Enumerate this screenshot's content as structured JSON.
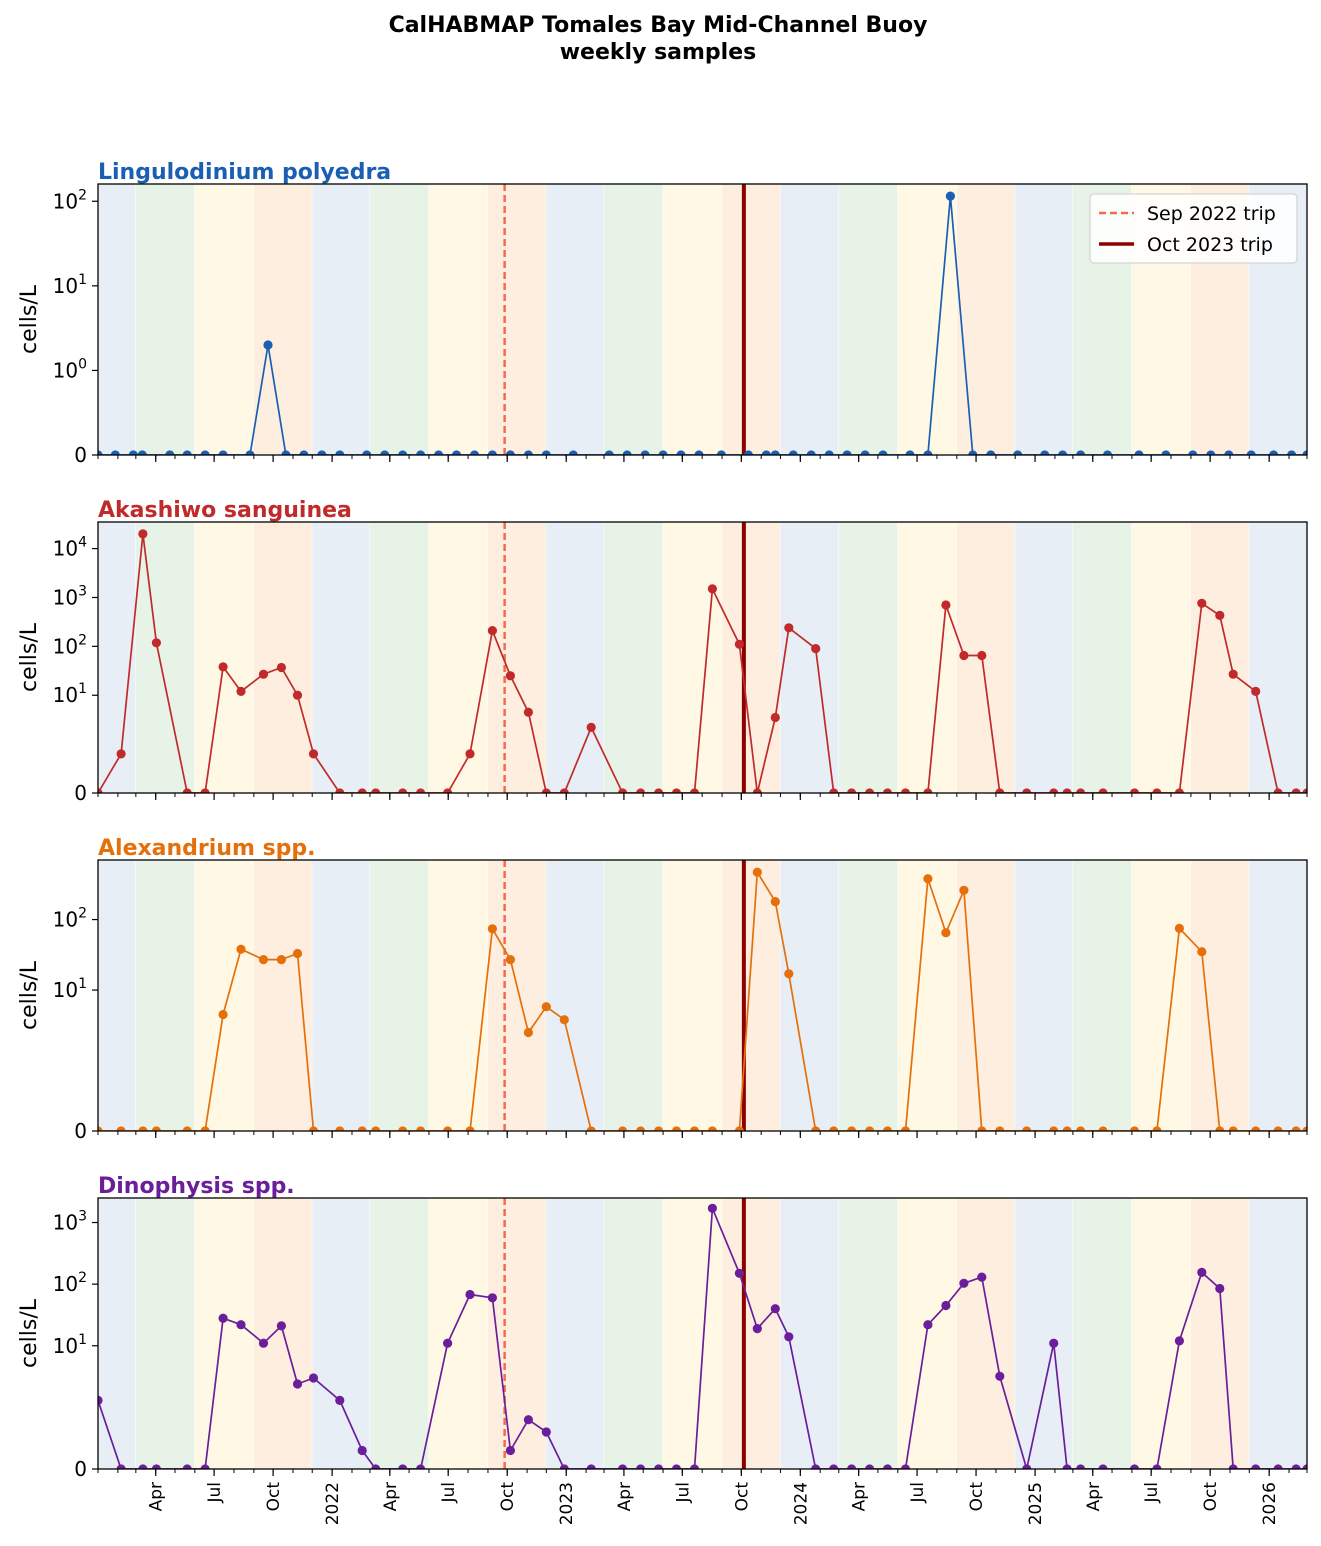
{
  "suptitle": [
    "CalHABMAP Tomales Bay Mid-Channel Buoy",
    "weekly samples"
  ],
  "colors": {
    "season_winter": "#e8eef6",
    "season_spring": "#e8f3e7",
    "season_summer": "#fff8e5",
    "season_fall": "#fdeedf",
    "trip_sep_2022": "#f26b4f",
    "trip_oct_2023": "#8b0000"
  },
  "chart_data": {
    "type": "line",
    "scale": "symlog",
    "ylabel": "cells/L",
    "x_tick_labels": [
      "Apr",
      "Jul",
      "Oct",
      "2022",
      "Apr",
      "Jul",
      "Oct",
      "2023",
      "Apr",
      "Jul",
      "Oct",
      "2024",
      "Apr",
      "Jul",
      "Oct",
      "2025",
      "Apr",
      "Jul",
      "Oct",
      "2026"
    ],
    "x_range": [
      "2021-01-01",
      "2026-03-01"
    ],
    "legend": {
      "placement": "top-right",
      "panel": 0,
      "entries": [
        {
          "label": "Sep 2022 trip",
          "style": "dashed",
          "color": "#f26b4f"
        },
        {
          "label": "Oct 2023 trip",
          "style": "solid",
          "color": "#8b0000"
        }
      ]
    },
    "trips": [
      {
        "label": "Sep 2022 trip",
        "date": "2022-09-27"
      },
      {
        "label": "Oct 2023 trip",
        "date": "2023-10-05"
      }
    ],
    "seasons": [
      {
        "start": "2020-12-01",
        "end": "2021-03-01",
        "season": "winter"
      },
      {
        "start": "2021-03-01",
        "end": "2021-06-01",
        "season": "spring"
      },
      {
        "start": "2021-06-01",
        "end": "2021-09-01",
        "season": "summer"
      },
      {
        "start": "2021-09-01",
        "end": "2021-12-01",
        "season": "fall"
      },
      {
        "start": "2021-12-01",
        "end": "2022-03-01",
        "season": "winter"
      },
      {
        "start": "2022-03-01",
        "end": "2022-06-01",
        "season": "spring"
      },
      {
        "start": "2022-06-01",
        "end": "2022-09-01",
        "season": "summer"
      },
      {
        "start": "2022-09-01",
        "end": "2022-12-01",
        "season": "fall"
      },
      {
        "start": "2022-12-01",
        "end": "2023-03-01",
        "season": "winter"
      },
      {
        "start": "2023-03-01",
        "end": "2023-06-01",
        "season": "spring"
      },
      {
        "start": "2023-06-01",
        "end": "2023-09-01",
        "season": "summer"
      },
      {
        "start": "2023-09-01",
        "end": "2023-12-01",
        "season": "fall"
      },
      {
        "start": "2023-12-01",
        "end": "2024-03-01",
        "season": "winter"
      },
      {
        "start": "2024-03-01",
        "end": "2024-06-01",
        "season": "spring"
      },
      {
        "start": "2024-06-01",
        "end": "2024-09-01",
        "season": "summer"
      },
      {
        "start": "2024-09-01",
        "end": "2024-12-01",
        "season": "fall"
      },
      {
        "start": "2024-12-01",
        "end": "2025-03-01",
        "season": "winter"
      },
      {
        "start": "2025-03-01",
        "end": "2025-06-01",
        "season": "spring"
      },
      {
        "start": "2025-06-01",
        "end": "2025-09-01",
        "season": "summer"
      },
      {
        "start": "2025-09-01",
        "end": "2025-12-01",
        "season": "fall"
      },
      {
        "start": "2025-12-01",
        "end": "2026-03-01",
        "season": "winter"
      }
    ],
    "panels": [
      {
        "title": "Lingulodinium polyedra",
        "color": "#1a5fb4",
        "ymax": 160,
        "yticks": [
          {
            "value": 0,
            "base": "0",
            "exp": ""
          },
          {
            "value": 1,
            "base": "10",
            "exp": "0"
          },
          {
            "value": 10,
            "base": "10",
            "exp": "1"
          },
          {
            "value": 100,
            "base": "10",
            "exp": "2"
          }
        ],
        "x": [
          "2021-01-01",
          "2021-01-28",
          "2021-02-25",
          "2021-03-11",
          "2021-04-23",
          "2021-05-20",
          "2021-06-17",
          "2021-07-15",
          "2021-08-26",
          "2021-09-23",
          "2021-10-21",
          "2021-11-18",
          "2021-12-16",
          "2022-01-13",
          "2022-02-24",
          "2022-03-24",
          "2022-04-21",
          "2022-05-19",
          "2022-06-16",
          "2022-07-14",
          "2022-08-11",
          "2022-09-08",
          "2022-10-06",
          "2022-11-03",
          "2022-12-01",
          "2023-01-12",
          "2023-03-09",
          "2023-04-06",
          "2023-05-04",
          "2023-06-01",
          "2023-06-29",
          "2023-07-27",
          "2023-08-31",
          "2023-10-12",
          "2023-11-09",
          "2023-11-23",
          "2023-12-21",
          "2024-01-18",
          "2024-02-15",
          "2024-03-14",
          "2024-04-11",
          "2024-05-09",
          "2024-06-20",
          "2024-07-18",
          "2024-08-22",
          "2024-09-26",
          "2024-10-24",
          "2024-12-05",
          "2025-01-16",
          "2025-02-13",
          "2025-03-13",
          "2025-04-24",
          "2025-06-12",
          "2025-07-24",
          "2025-09-04",
          "2025-10-02",
          "2025-10-30",
          "2025-12-04",
          "2026-01-08",
          "2026-02-05",
          "2026-03-01"
        ],
        "y": [
          0,
          0,
          0,
          0,
          0,
          0,
          0,
          0,
          0,
          2,
          0,
          0,
          0,
          0,
          0,
          0,
          0,
          0,
          0,
          0,
          0,
          0,
          0,
          0,
          0,
          0,
          0,
          0,
          0,
          0,
          0,
          0,
          0,
          0,
          0,
          0,
          0,
          0,
          0,
          0,
          0,
          0,
          0,
          0,
          115,
          0,
          0,
          0,
          0,
          0,
          0,
          0,
          0,
          0,
          0,
          0,
          0,
          0,
          0,
          0,
          0
        ]
      },
      {
        "title": "Akashiwo sanguinea",
        "color": "#c12a2a",
        "ymax": 35000,
        "yticks": [
          {
            "value": 0,
            "base": "0",
            "exp": ""
          },
          {
            "value": 10,
            "base": "10",
            "exp": "1"
          },
          {
            "value": 100,
            "base": "10",
            "exp": "2"
          },
          {
            "value": 1000,
            "base": "10",
            "exp": "3"
          },
          {
            "value": 10000,
            "base": "10",
            "exp": "4"
          }
        ],
        "x": [
          "2021-01-01",
          "2021-02-06",
          "2021-03-12",
          "2021-04-02",
          "2021-05-20",
          "2021-06-17",
          "2021-07-15",
          "2021-08-12",
          "2021-09-16",
          "2021-10-14",
          "2021-11-08",
          "2021-12-03",
          "2022-01-13",
          "2022-02-17",
          "2022-03-10",
          "2022-04-21",
          "2022-05-19",
          "2022-06-30",
          "2022-08-04",
          "2022-09-08",
          "2022-10-06",
          "2022-11-03",
          "2022-12-01",
          "2022-12-29",
          "2023-02-09",
          "2023-03-30",
          "2023-04-27",
          "2023-05-25",
          "2023-06-22",
          "2023-07-20",
          "2023-08-17",
          "2023-09-28",
          "2023-10-26",
          "2023-11-23",
          "2023-12-14",
          "2024-01-25",
          "2024-02-22",
          "2024-03-21",
          "2024-04-18",
          "2024-05-16",
          "2024-06-13",
          "2024-07-18",
          "2024-08-15",
          "2024-09-12",
          "2024-10-10",
          "2024-11-07",
          "2024-12-19",
          "2025-01-30",
          "2025-02-20",
          "2025-03-13",
          "2025-04-17",
          "2025-06-05",
          "2025-07-10",
          "2025-08-14",
          "2025-09-18",
          "2025-10-16",
          "2025-11-06",
          "2025-12-11",
          "2026-01-15",
          "2026-02-12",
          "2026-03-01"
        ],
        "y": [
          0,
          0.8,
          20000,
          118,
          0,
          0,
          38,
          12,
          27,
          37,
          10,
          0.8,
          0,
          0,
          0,
          0,
          0,
          0,
          0.8,
          210,
          25,
          4.5,
          0,
          0,
          2.2,
          0,
          0,
          0,
          0,
          0,
          1500,
          110,
          0,
          3.5,
          240,
          90,
          0,
          0,
          0,
          0,
          0,
          0,
          700,
          65,
          65,
          0,
          0,
          0,
          0,
          0,
          0,
          0,
          0,
          0,
          760,
          430,
          27,
          12,
          0,
          0,
          0
        ]
      },
      {
        "title": "Alexandrium spp.",
        "color": "#e5700b",
        "ymax": 700,
        "yticks": [
          {
            "value": 0,
            "base": "0",
            "exp": ""
          },
          {
            "value": 10,
            "base": "10",
            "exp": "1"
          },
          {
            "value": 100,
            "base": "10",
            "exp": "2"
          }
        ],
        "x": [
          "2021-01-01",
          "2021-02-06",
          "2021-03-12",
          "2021-04-02",
          "2021-05-20",
          "2021-06-17",
          "2021-07-15",
          "2021-08-12",
          "2021-09-16",
          "2021-10-14",
          "2021-11-08",
          "2021-12-03",
          "2022-01-13",
          "2022-02-17",
          "2022-03-10",
          "2022-04-21",
          "2022-05-19",
          "2022-06-30",
          "2022-08-04",
          "2022-09-08",
          "2022-10-06",
          "2022-11-03",
          "2022-12-01",
          "2022-12-29",
          "2023-02-09",
          "2023-03-30",
          "2023-04-27",
          "2023-05-25",
          "2023-06-22",
          "2023-07-20",
          "2023-08-17",
          "2023-09-28",
          "2023-10-26",
          "2023-11-23",
          "2023-12-14",
          "2024-01-25",
          "2024-02-22",
          "2024-03-21",
          "2024-04-18",
          "2024-05-16",
          "2024-06-13",
          "2024-07-18",
          "2024-08-15",
          "2024-09-12",
          "2024-10-10",
          "2024-11-07",
          "2024-12-19",
          "2025-01-30",
          "2025-02-20",
          "2025-03-13",
          "2025-04-17",
          "2025-06-05",
          "2025-07-10",
          "2025-08-14",
          "2025-09-18",
          "2025-10-16",
          "2025-11-06",
          "2025-12-11",
          "2026-01-15",
          "2026-02-12",
          "2026-03-01"
        ],
        "y": [
          0,
          0,
          0,
          0,
          0,
          0,
          4.5,
          38,
          27,
          27,
          33,
          0,
          0,
          0,
          0,
          0,
          0,
          0,
          0,
          74,
          27,
          2.5,
          5.8,
          3.8,
          0,
          0,
          0,
          0,
          0,
          0,
          0,
          0,
          470,
          180,
          17,
          0,
          0,
          0,
          0,
          0,
          0,
          380,
          65,
          260,
          0,
          0,
          0,
          0,
          0,
          0,
          0,
          0,
          0,
          75,
          35,
          0,
          0,
          0,
          0,
          0,
          0
        ]
      },
      {
        "title": "Dinophysis spp.",
        "color": "#6a1e9a",
        "ymax": 2500,
        "yticks": [
          {
            "value": 0,
            "base": "0",
            "exp": ""
          },
          {
            "value": 10,
            "base": "10",
            "exp": "1"
          },
          {
            "value": 100,
            "base": "10",
            "exp": "2"
          },
          {
            "value": 1000,
            "base": "10",
            "exp": "3"
          }
        ],
        "x": [
          "2021-01-01",
          "2021-02-06",
          "2021-03-12",
          "2021-04-02",
          "2021-05-20",
          "2021-06-17",
          "2021-07-15",
          "2021-08-12",
          "2021-09-16",
          "2021-10-14",
          "2021-11-08",
          "2021-12-03",
          "2022-01-13",
          "2022-02-17",
          "2022-03-10",
          "2022-04-21",
          "2022-05-19",
          "2022-06-30",
          "2022-08-04",
          "2022-09-08",
          "2022-10-06",
          "2022-11-03",
          "2022-12-01",
          "2022-12-29",
          "2023-02-09",
          "2023-03-30",
          "2023-04-27",
          "2023-05-25",
          "2023-06-22",
          "2023-07-20",
          "2023-08-17",
          "2023-09-28",
          "2023-10-26",
          "2023-11-23",
          "2023-12-14",
          "2024-01-25",
          "2024-02-22",
          "2024-03-21",
          "2024-04-18",
          "2024-05-16",
          "2024-06-13",
          "2024-07-18",
          "2024-08-15",
          "2024-09-12",
          "2024-10-10",
          "2024-11-07",
          "2024-12-19",
          "2025-01-30",
          "2025-02-20",
          "2025-03-13",
          "2025-04-17",
          "2025-06-05",
          "2025-07-10",
          "2025-08-14",
          "2025-09-18",
          "2025-10-16",
          "2025-11-06",
          "2025-12-11",
          "2026-01-15",
          "2026-02-12",
          "2026-03-01"
        ],
        "y": [
          1.3,
          0,
          0,
          0,
          0,
          0,
          28,
          22,
          11,
          21,
          2.4,
          3,
          1.3,
          0.3,
          0,
          0,
          0,
          11,
          68,
          60,
          0.3,
          0.8,
          0.6,
          0,
          0,
          0,
          0,
          0,
          0,
          0,
          1700,
          150,
          19,
          40,
          14,
          0,
          0,
          0,
          0,
          0,
          0,
          22,
          45,
          103,
          130,
          3.2,
          0,
          11,
          0,
          0,
          0,
          0,
          0,
          12,
          155,
          85,
          0,
          0,
          0,
          0,
          0
        ]
      }
    ]
  }
}
